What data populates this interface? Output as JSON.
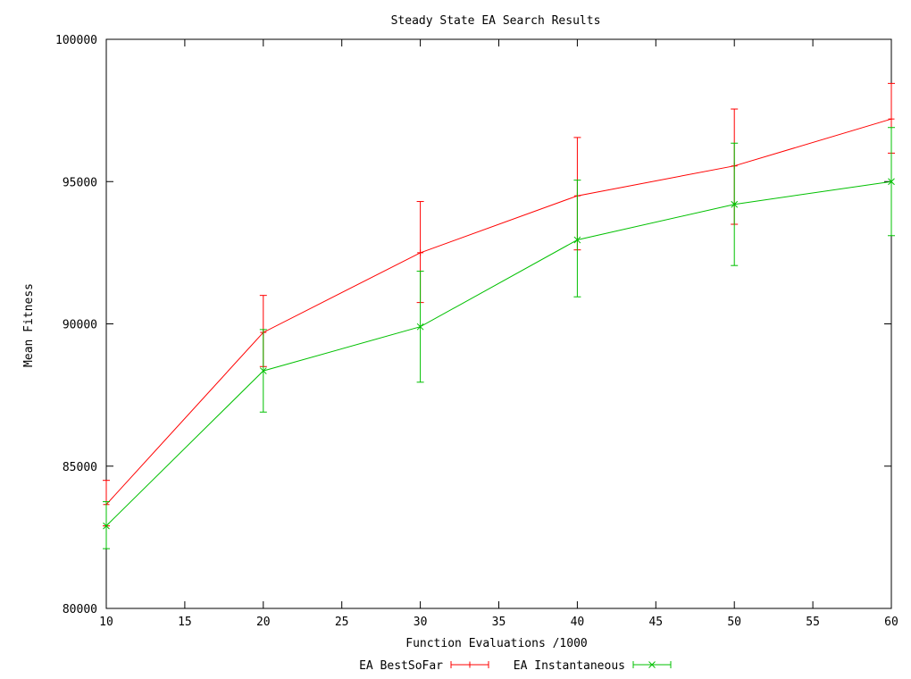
{
  "chart_data": {
    "type": "line",
    "title": "Steady State EA Search Results",
    "xlabel": "Function Evaluations /1000",
    "ylabel": "Mean Fitness",
    "xlim": [
      10,
      60
    ],
    "ylim": [
      80000,
      100000
    ],
    "x_ticks": [
      10,
      15,
      20,
      25,
      30,
      35,
      40,
      45,
      50,
      55,
      60
    ],
    "y_ticks": [
      80000,
      85000,
      90000,
      95000,
      100000
    ],
    "grid": false,
    "legend_position": "bottom-center",
    "x": [
      10,
      20,
      30,
      40,
      50,
      60
    ],
    "series": [
      {
        "name": "EA BestSoFar",
        "color": "#ff0000",
        "marker": "plus",
        "values": [
          83650,
          89700,
          92500,
          94500,
          95550,
          97200
        ],
        "err_low": [
          82900,
          88500,
          90750,
          92600,
          93500,
          96000
        ],
        "err_high": [
          84500,
          91000,
          94300,
          96550,
          97550,
          98450
        ]
      },
      {
        "name": "EA Instantaneous",
        "color": "#00c000",
        "marker": "cross",
        "values": [
          82900,
          88350,
          89900,
          92950,
          94200,
          95000
        ],
        "err_low": [
          82100,
          86900,
          87950,
          90950,
          92050,
          93100
        ],
        "err_high": [
          83750,
          89800,
          91850,
          95050,
          96350,
          96900
        ]
      }
    ]
  }
}
